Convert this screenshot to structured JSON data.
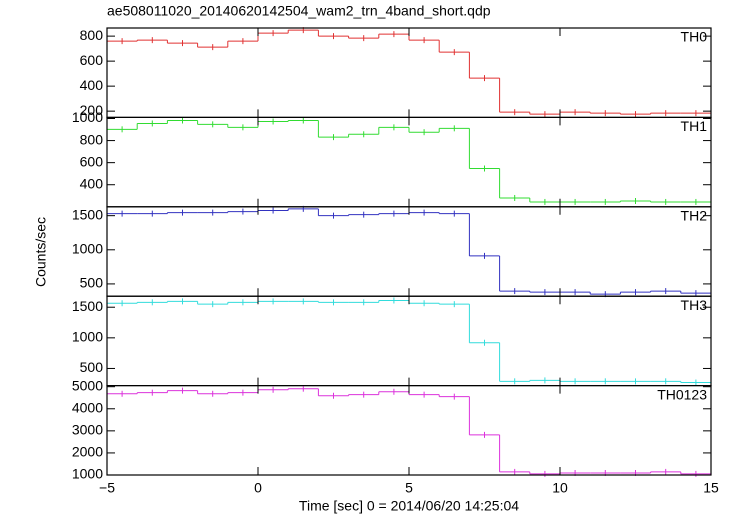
{
  "chart_data": {
    "type": "step",
    "title": "ae508011020_20140620142504_wam2_trn_4band_short.qdp",
    "xlabel": "Time [sec] 0 = 2014/06/20 14:25:04",
    "ylabel": "Counts/sec",
    "xlim": [
      -5,
      15
    ],
    "xticks": [
      {
        "value": -5,
        "label": "−5"
      },
      0,
      5,
      10,
      15
    ],
    "bins": [
      -5,
      -4,
      -3,
      -2,
      -1,
      0,
      1,
      2,
      3,
      4,
      5,
      6,
      7,
      8,
      9,
      10,
      11,
      12,
      13,
      14,
      15
    ],
    "panels": [
      {
        "name": "TH0",
        "color": "#e03232",
        "ylim": [
          150,
          865
        ],
        "yticks": [
          200,
          400,
          600,
          800
        ],
        "values": [
          760,
          768,
          744,
          712,
          760,
          824,
          848,
          800,
          784,
          816,
          768,
          672,
          464,
          192,
          176,
          192,
          184,
          176,
          184,
          184
        ]
      },
      {
        "name": "TH1",
        "color": "#32dc32",
        "ylim": [
          200,
          1010
        ],
        "yticks": [
          400,
          600,
          800,
          1000
        ],
        "values": [
          902,
          955,
          982,
          947,
          920,
          973,
          982,
          831,
          857,
          920,
          876,
          911,
          547,
          280,
          244,
          244,
          244,
          253,
          244,
          244
        ]
      },
      {
        "name": "TH2",
        "color": "#3232c0",
        "ylim": [
          320,
          1630
        ],
        "yticks": [
          500,
          1000,
          1500
        ],
        "values": [
          1530,
          1530,
          1545,
          1545,
          1560,
          1575,
          1600,
          1500,
          1515,
          1530,
          1545,
          1530,
          910,
          395,
          380,
          380,
          350,
          380,
          395,
          365
        ]
      },
      {
        "name": "TH3",
        "color": "#32dcdc",
        "ylim": [
          220,
          1680
        ],
        "yticks": [
          500,
          1000,
          1500
        ],
        "values": [
          1565,
          1580,
          1595,
          1550,
          1580,
          1595,
          1595,
          1580,
          1580,
          1610,
          1565,
          1550,
          920,
          290,
          305,
          290,
          290,
          290,
          290,
          270
        ]
      },
      {
        "name": "TH0123",
        "color": "#dc32dc",
        "ylim": [
          1000,
          5050
        ],
        "yticks": [
          1000,
          2000,
          3000,
          4000,
          5000
        ],
        "values": [
          4680,
          4730,
          4820,
          4680,
          4730,
          4860,
          4910,
          4590,
          4640,
          4770,
          4640,
          4550,
          2820,
          1140,
          1050,
          1090,
          1090,
          1090,
          1140,
          1050
        ]
      }
    ]
  }
}
